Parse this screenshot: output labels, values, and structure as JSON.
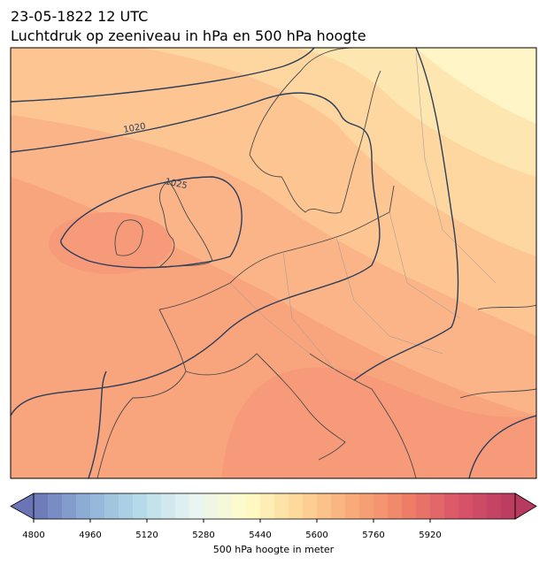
{
  "header": {
    "title": "23-05-1822 12 UTC",
    "subtitle": "Luchtdruk op zeeniveau in hPa en 500 hPa hoogte"
  },
  "map": {
    "contour_labels": [
      "1020",
      "1025"
    ]
  },
  "colorbar": {
    "label": "500 hPa hoogte in meter",
    "lim": [
      4800,
      6160
    ],
    "step": 40,
    "ticks": [
      4800,
      4960,
      5120,
      5280,
      5440,
      5600,
      5760,
      5920
    ],
    "colors": [
      "#6a74b6",
      "#8fb0d6",
      "#b6dbea",
      "#e8f5f2",
      "#fffcc6",
      "#fdd597",
      "#f9a878",
      "#ee7e67",
      "#d9536a",
      "#b83a5e"
    ]
  }
}
